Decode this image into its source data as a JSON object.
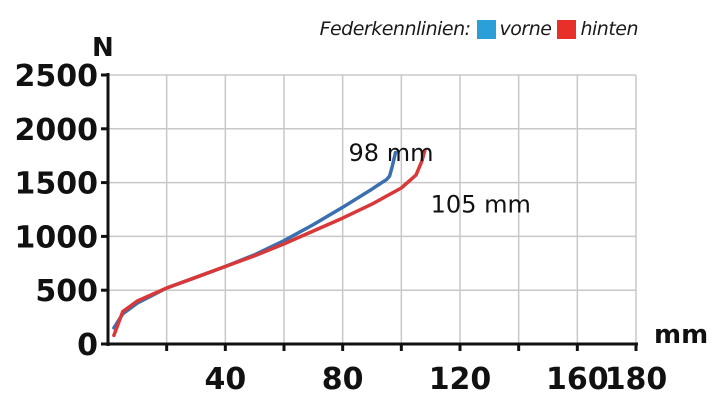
{
  "legend": {
    "title": "Federkennlinien:",
    "items": [
      {
        "label": "vorne",
        "color": "#2a9fd8"
      },
      {
        "label": "hinten",
        "color": "#e8302a"
      }
    ]
  },
  "chart_data": {
    "type": "line",
    "ylabel": "N",
    "xlabel": "mm",
    "xlim": [
      0,
      180
    ],
    "ylim": [
      0,
      2500
    ],
    "x_ticks": [
      20,
      40,
      60,
      80,
      100,
      120,
      140,
      160,
      180
    ],
    "x_tick_labels": [
      "40",
      "80",
      "120",
      "160",
      "180"
    ],
    "x_tick_label_values": [
      40,
      80,
      120,
      160,
      180
    ],
    "y_ticks": [
      0,
      500,
      1000,
      1500,
      2000,
      2500
    ],
    "y_tick_labels": [
      "0",
      "500",
      "1000",
      "1500",
      "2000",
      "2500"
    ],
    "grid": true,
    "series": [
      {
        "name": "vorne",
        "color": "#3a6fb0",
        "x": [
          2,
          5,
          10,
          15,
          20,
          30,
          40,
          50,
          60,
          70,
          80,
          90,
          95,
          96,
          97,
          98
        ],
        "y": [
          150,
          280,
          380,
          450,
          520,
          620,
          720,
          830,
          960,
          1110,
          1270,
          1440,
          1530,
          1560,
          1660,
          1780
        ]
      },
      {
        "name": "hinten",
        "color": "#d93838",
        "x": [
          2,
          5,
          10,
          15,
          20,
          30,
          40,
          50,
          60,
          70,
          80,
          90,
          100,
          105,
          107,
          108
        ],
        "y": [
          80,
          300,
          400,
          460,
          520,
          620,
          720,
          820,
          930,
          1050,
          1170,
          1300,
          1450,
          1570,
          1700,
          1800
        ]
      }
    ],
    "annotations": [
      {
        "text": "98 mm",
        "x": 82,
        "y": 1700
      },
      {
        "text": "105 mm",
        "x": 110,
        "y": 1220
      }
    ]
  }
}
